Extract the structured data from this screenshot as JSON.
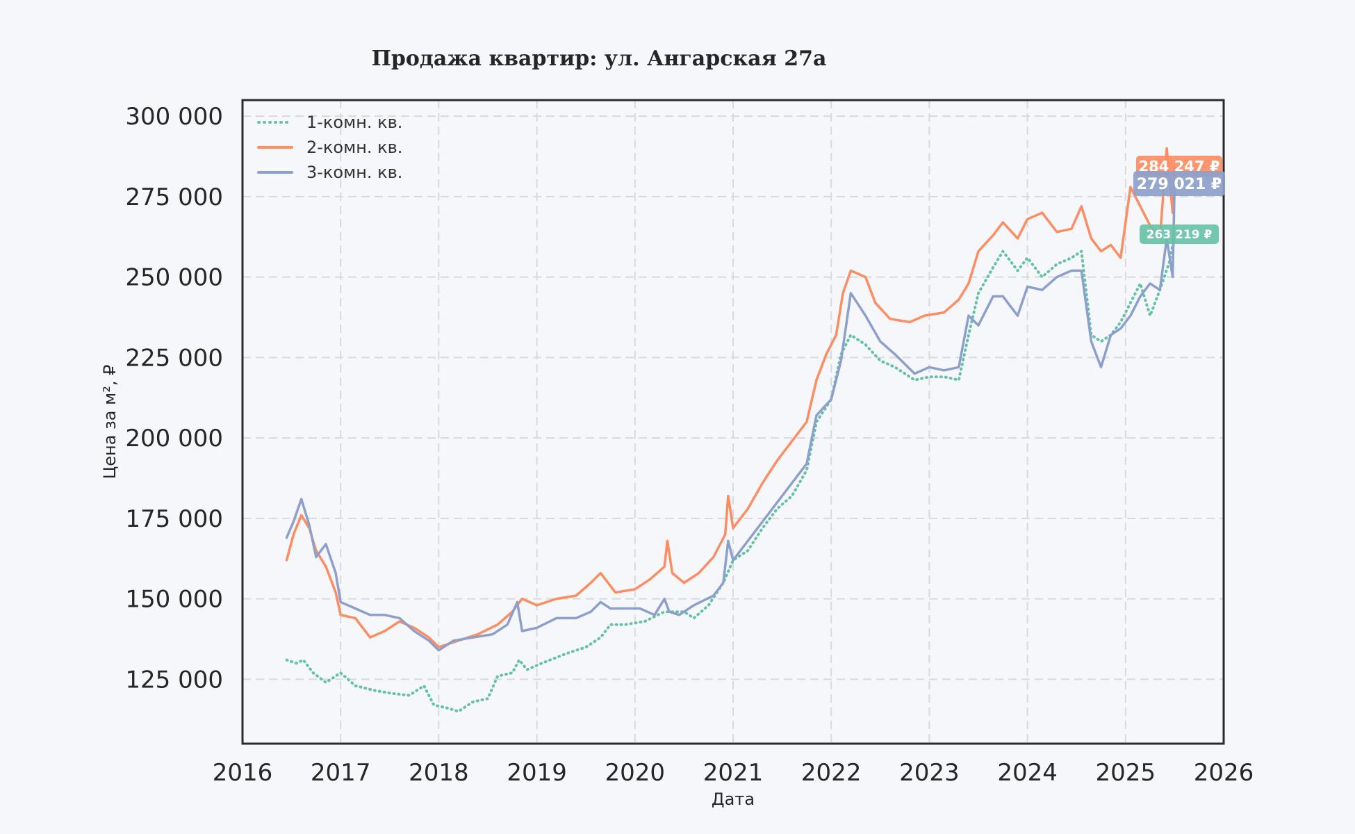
{
  "chart_data": {
    "type": "line",
    "title": "Продажа квартир: ул. Ангарская 27а",
    "xlabel": "Дата",
    "ylabel": "Цена за м², ₽",
    "xlim": [
      2016,
      2026
    ],
    "ylim": [
      105000,
      305000
    ],
    "x_ticks": [
      "2016",
      "2017",
      "2018",
      "2019",
      "2020",
      "2021",
      "2022",
      "2023",
      "2024",
      "2025",
      "2026"
    ],
    "y_ticks": [
      {
        "value": 125000,
        "label": "125 000"
      },
      {
        "value": 150000,
        "label": "150 000"
      },
      {
        "value": 175000,
        "label": "175 000"
      },
      {
        "value": 200000,
        "label": "200 000"
      },
      {
        "value": 225000,
        "label": "225 000"
      },
      {
        "value": 250000,
        "label": "250 000"
      },
      {
        "value": 275000,
        "label": "275 000"
      },
      {
        "value": 300000,
        "label": "300 000"
      }
    ],
    "grid": true,
    "legend_position": "top-left",
    "series": [
      {
        "name": "1-комн. кв.",
        "color": "#66c2a5",
        "style": "dotted",
        "end_label": "263 219 ₽",
        "points": [
          [
            2016.45,
            131000
          ],
          [
            2016.55,
            130000
          ],
          [
            2016.62,
            131000
          ],
          [
            2016.72,
            127000
          ],
          [
            2016.85,
            124000
          ],
          [
            2017.0,
            127000
          ],
          [
            2017.15,
            123000
          ],
          [
            2017.35,
            121500
          ],
          [
            2017.55,
            120500
          ],
          [
            2017.7,
            120000
          ],
          [
            2017.85,
            123000
          ],
          [
            2017.95,
            117000
          ],
          [
            2018.1,
            116000
          ],
          [
            2018.2,
            115000
          ],
          [
            2018.35,
            118000
          ],
          [
            2018.5,
            119000
          ],
          [
            2018.6,
            126000
          ],
          [
            2018.75,
            127000
          ],
          [
            2018.82,
            131000
          ],
          [
            2018.9,
            128000
          ],
          [
            2019.05,
            130000
          ],
          [
            2019.3,
            133000
          ],
          [
            2019.5,
            135000
          ],
          [
            2019.65,
            138000
          ],
          [
            2019.75,
            142000
          ],
          [
            2019.9,
            142000
          ],
          [
            2020.1,
            143000
          ],
          [
            2020.3,
            146000
          ],
          [
            2020.5,
            146000
          ],
          [
            2020.6,
            144000
          ],
          [
            2020.75,
            148000
          ],
          [
            2020.9,
            155000
          ],
          [
            2021.0,
            162000
          ],
          [
            2021.15,
            165000
          ],
          [
            2021.3,
            172000
          ],
          [
            2021.45,
            178000
          ],
          [
            2021.6,
            182000
          ],
          [
            2021.75,
            190000
          ],
          [
            2021.85,
            205000
          ],
          [
            2022.0,
            212000
          ],
          [
            2022.1,
            226000
          ],
          [
            2022.2,
            232000
          ],
          [
            2022.35,
            229000
          ],
          [
            2022.5,
            224000
          ],
          [
            2022.65,
            222000
          ],
          [
            2022.85,
            218000
          ],
          [
            2023.0,
            219000
          ],
          [
            2023.15,
            219000
          ],
          [
            2023.3,
            218000
          ],
          [
            2023.4,
            232000
          ],
          [
            2023.5,
            245000
          ],
          [
            2023.65,
            253000
          ],
          [
            2023.75,
            258000
          ],
          [
            2023.9,
            252000
          ],
          [
            2024.0,
            256000
          ],
          [
            2024.15,
            250000
          ],
          [
            2024.3,
            254000
          ],
          [
            2024.45,
            256000
          ],
          [
            2024.55,
            258000
          ],
          [
            2024.65,
            232000
          ],
          [
            2024.75,
            230000
          ],
          [
            2024.85,
            232000
          ],
          [
            2024.95,
            236000
          ],
          [
            2025.05,
            242000
          ],
          [
            2025.15,
            248000
          ],
          [
            2025.25,
            238000
          ],
          [
            2025.35,
            246000
          ],
          [
            2025.45,
            255000
          ],
          [
            2025.5,
            263219
          ]
        ]
      },
      {
        "name": "2-комн. кв.",
        "color": "#fc8d62",
        "style": "solid",
        "end_label": "284 247 ₽",
        "points": [
          [
            2016.45,
            162000
          ],
          [
            2016.52,
            170000
          ],
          [
            2016.6,
            176000
          ],
          [
            2016.68,
            172000
          ],
          [
            2016.75,
            165000
          ],
          [
            2016.85,
            160000
          ],
          [
            2016.95,
            152000
          ],
          [
            2017.0,
            145000
          ],
          [
            2017.15,
            144000
          ],
          [
            2017.3,
            138000
          ],
          [
            2017.45,
            140000
          ],
          [
            2017.6,
            143000
          ],
          [
            2017.75,
            141000
          ],
          [
            2017.9,
            138000
          ],
          [
            2018.0,
            135000
          ],
          [
            2018.2,
            137000
          ],
          [
            2018.4,
            139000
          ],
          [
            2018.6,
            142000
          ],
          [
            2018.75,
            146000
          ],
          [
            2018.85,
            150000
          ],
          [
            2019.0,
            148000
          ],
          [
            2019.2,
            150000
          ],
          [
            2019.4,
            151000
          ],
          [
            2019.55,
            155000
          ],
          [
            2019.65,
            158000
          ],
          [
            2019.8,
            152000
          ],
          [
            2020.0,
            153000
          ],
          [
            2020.15,
            156000
          ],
          [
            2020.3,
            160000
          ],
          [
            2020.33,
            168000
          ],
          [
            2020.38,
            158000
          ],
          [
            2020.5,
            155000
          ],
          [
            2020.65,
            158000
          ],
          [
            2020.8,
            163000
          ],
          [
            2020.92,
            170000
          ],
          [
            2020.95,
            182000
          ],
          [
            2021.0,
            172000
          ],
          [
            2021.15,
            178000
          ],
          [
            2021.3,
            186000
          ],
          [
            2021.45,
            193000
          ],
          [
            2021.6,
            199000
          ],
          [
            2021.75,
            205000
          ],
          [
            2021.85,
            218000
          ],
          [
            2021.95,
            226000
          ],
          [
            2022.05,
            232000
          ],
          [
            2022.12,
            245000
          ],
          [
            2022.2,
            252000
          ],
          [
            2022.35,
            250000
          ],
          [
            2022.45,
            242000
          ],
          [
            2022.6,
            237000
          ],
          [
            2022.8,
            236000
          ],
          [
            2022.95,
            238000
          ],
          [
            2023.15,
            239000
          ],
          [
            2023.3,
            243000
          ],
          [
            2023.4,
            248000
          ],
          [
            2023.5,
            258000
          ],
          [
            2023.65,
            263000
          ],
          [
            2023.75,
            267000
          ],
          [
            2023.9,
            262000
          ],
          [
            2024.0,
            268000
          ],
          [
            2024.15,
            270000
          ],
          [
            2024.3,
            264000
          ],
          [
            2024.45,
            265000
          ],
          [
            2024.55,
            272000
          ],
          [
            2024.65,
            262000
          ],
          [
            2024.75,
            258000
          ],
          [
            2024.85,
            260000
          ],
          [
            2024.95,
            256000
          ],
          [
            2025.05,
            278000
          ],
          [
            2025.15,
            272000
          ],
          [
            2025.25,
            266000
          ],
          [
            2025.35,
            262000
          ],
          [
            2025.42,
            290000
          ],
          [
            2025.48,
            270000
          ],
          [
            2025.5,
            284247
          ]
        ]
      },
      {
        "name": "3-комн. кв.",
        "color": "#8da0cb",
        "style": "solid",
        "end_label": "279 021 ₽",
        "points": [
          [
            2016.45,
            169000
          ],
          [
            2016.52,
            174000
          ],
          [
            2016.6,
            181000
          ],
          [
            2016.68,
            173000
          ],
          [
            2016.75,
            163000
          ],
          [
            2016.85,
            167000
          ],
          [
            2016.95,
            158000
          ],
          [
            2017.0,
            149000
          ],
          [
            2017.15,
            147000
          ],
          [
            2017.3,
            145000
          ],
          [
            2017.45,
            145000
          ],
          [
            2017.6,
            144000
          ],
          [
            2017.75,
            140000
          ],
          [
            2017.9,
            137000
          ],
          [
            2018.0,
            134000
          ],
          [
            2018.15,
            137000
          ],
          [
            2018.35,
            138000
          ],
          [
            2018.55,
            139000
          ],
          [
            2018.7,
            142000
          ],
          [
            2018.8,
            149000
          ],
          [
            2018.85,
            140000
          ],
          [
            2019.0,
            141000
          ],
          [
            2019.2,
            144000
          ],
          [
            2019.4,
            144000
          ],
          [
            2019.55,
            146000
          ],
          [
            2019.65,
            149000
          ],
          [
            2019.75,
            147000
          ],
          [
            2019.9,
            147000
          ],
          [
            2020.05,
            147000
          ],
          [
            2020.2,
            145000
          ],
          [
            2020.3,
            150000
          ],
          [
            2020.35,
            146000
          ],
          [
            2020.45,
            145000
          ],
          [
            2020.6,
            148000
          ],
          [
            2020.8,
            151000
          ],
          [
            2020.9,
            155000
          ],
          [
            2020.95,
            168000
          ],
          [
            2021.0,
            162000
          ],
          [
            2021.15,
            168000
          ],
          [
            2021.3,
            174000
          ],
          [
            2021.45,
            180000
          ],
          [
            2021.6,
            186000
          ],
          [
            2021.75,
            192000
          ],
          [
            2021.85,
            207000
          ],
          [
            2022.0,
            212000
          ],
          [
            2022.1,
            224000
          ],
          [
            2022.2,
            245000
          ],
          [
            2022.35,
            238000
          ],
          [
            2022.5,
            230000
          ],
          [
            2022.65,
            226000
          ],
          [
            2022.85,
            220000
          ],
          [
            2023.0,
            222000
          ],
          [
            2023.15,
            221000
          ],
          [
            2023.3,
            222000
          ],
          [
            2023.4,
            238000
          ],
          [
            2023.5,
            235000
          ],
          [
            2023.65,
            244000
          ],
          [
            2023.75,
            244000
          ],
          [
            2023.9,
            238000
          ],
          [
            2024.0,
            247000
          ],
          [
            2024.15,
            246000
          ],
          [
            2024.3,
            250000
          ],
          [
            2024.45,
            252000
          ],
          [
            2024.55,
            252000
          ],
          [
            2024.65,
            230000
          ],
          [
            2024.75,
            222000
          ],
          [
            2024.85,
            232000
          ],
          [
            2024.95,
            234000
          ],
          [
            2025.05,
            238000
          ],
          [
            2025.15,
            244000
          ],
          [
            2025.25,
            248000
          ],
          [
            2025.35,
            246000
          ],
          [
            2025.42,
            262000
          ],
          [
            2025.48,
            250000
          ],
          [
            2025.5,
            279021
          ]
        ]
      }
    ]
  }
}
